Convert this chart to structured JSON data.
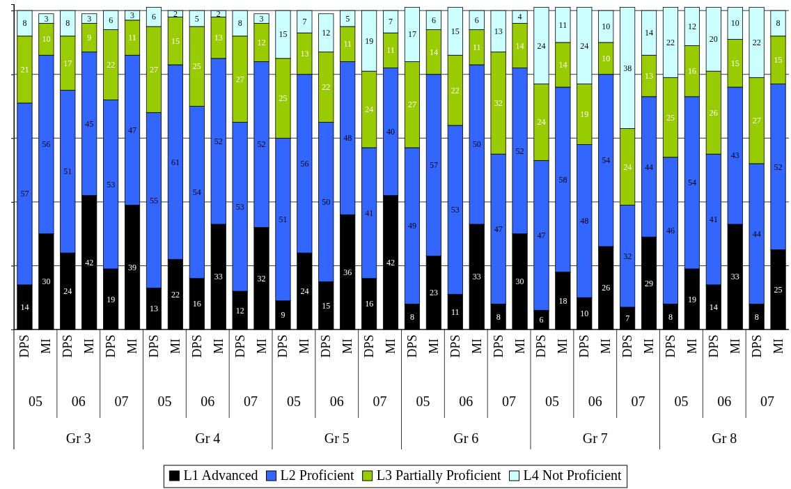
{
  "chart_data": {
    "type": "bar",
    "stacked": true,
    "data_labels": true,
    "grid": "y",
    "legend": "bottom",
    "tick_labels": "x",
    "ylim": [
      0,
      102
    ],
    "yticks": [
      {
        "value": 0,
        "label": null
      },
      {
        "value": 20,
        "label": null
      },
      {
        "value": 40,
        "label": null
      },
      {
        "value": 60,
        "label": null
      },
      {
        "value": 80,
        "label": null
      },
      {
        "value": 100,
        "label": null
      }
    ],
    "categories": [
      "DPS",
      "MI",
      "DPS",
      "MI",
      "DPS",
      "MI",
      "DPS",
      "MI",
      "DPS",
      "MI",
      "DPS",
      "MI",
      "DPS",
      "MI",
      "DPS",
      "MI",
      "DPS",
      "MI",
      "DPS",
      "MI",
      "DPS",
      "MI",
      "DPS",
      "MI",
      "DPS",
      "MI",
      "DPS",
      "MI",
      "DPS",
      "MI",
      "DPS",
      "MI",
      "DPS",
      "MI",
      "DPS",
      "MI"
    ],
    "annotations": [
      "05",
      "06",
      "07",
      "05",
      "06",
      "07",
      "05",
      "06",
      "07",
      "05",
      "06",
      "07",
      "05",
      "06",
      "07",
      "05",
      "06",
      "07",
      "Gr 3",
      "Gr 4",
      "Gr 5",
      "Gr 6",
      "Gr 7",
      "Gr 8"
    ],
    "series": [
      {
        "name": "L1 Advanced",
        "color": "#000000",
        "values": [
          14,
          30,
          24,
          42,
          19,
          39,
          13,
          22,
          16,
          33,
          12,
          32,
          9,
          24,
          15,
          36,
          16,
          42,
          8,
          23,
          11,
          33,
          8,
          30,
          6,
          18,
          10,
          26,
          7,
          29,
          8,
          19,
          14,
          33,
          8,
          25
        ]
      },
      {
        "name": "L2 Proficient",
        "color": "#3366ff",
        "values": [
          57,
          56,
          51,
          45,
          53,
          47,
          55,
          61,
          54,
          52,
          53,
          52,
          51,
          56,
          50,
          48,
          41,
          40,
          49,
          57,
          53,
          50,
          47,
          52,
          47,
          58,
          48,
          54,
          32,
          44,
          46,
          54,
          41,
          43,
          44,
          52
        ]
      },
      {
        "name": "L3 Partially Proficient",
        "color": "#99cc00",
        "values": [
          21,
          10,
          17,
          9,
          22,
          11,
          27,
          15,
          25,
          13,
          27,
          12,
          25,
          13,
          22,
          11,
          24,
          11,
          27,
          14,
          22,
          11,
          32,
          14,
          24,
          14,
          19,
          10,
          24,
          13,
          25,
          16,
          26,
          15,
          27,
          15
        ]
      },
      {
        "name": "L4 Not Proficient",
        "color": "#ccffff",
        "values": [
          8,
          3,
          8,
          3,
          6,
          3,
          6,
          2,
          5,
          2,
          8,
          3,
          15,
          7,
          12,
          5,
          19,
          7,
          17,
          6,
          15,
          6,
          13,
          4,
          24,
          11,
          24,
          10,
          38,
          14,
          22,
          12,
          20,
          10,
          22,
          8
        ]
      }
    ]
  }
}
